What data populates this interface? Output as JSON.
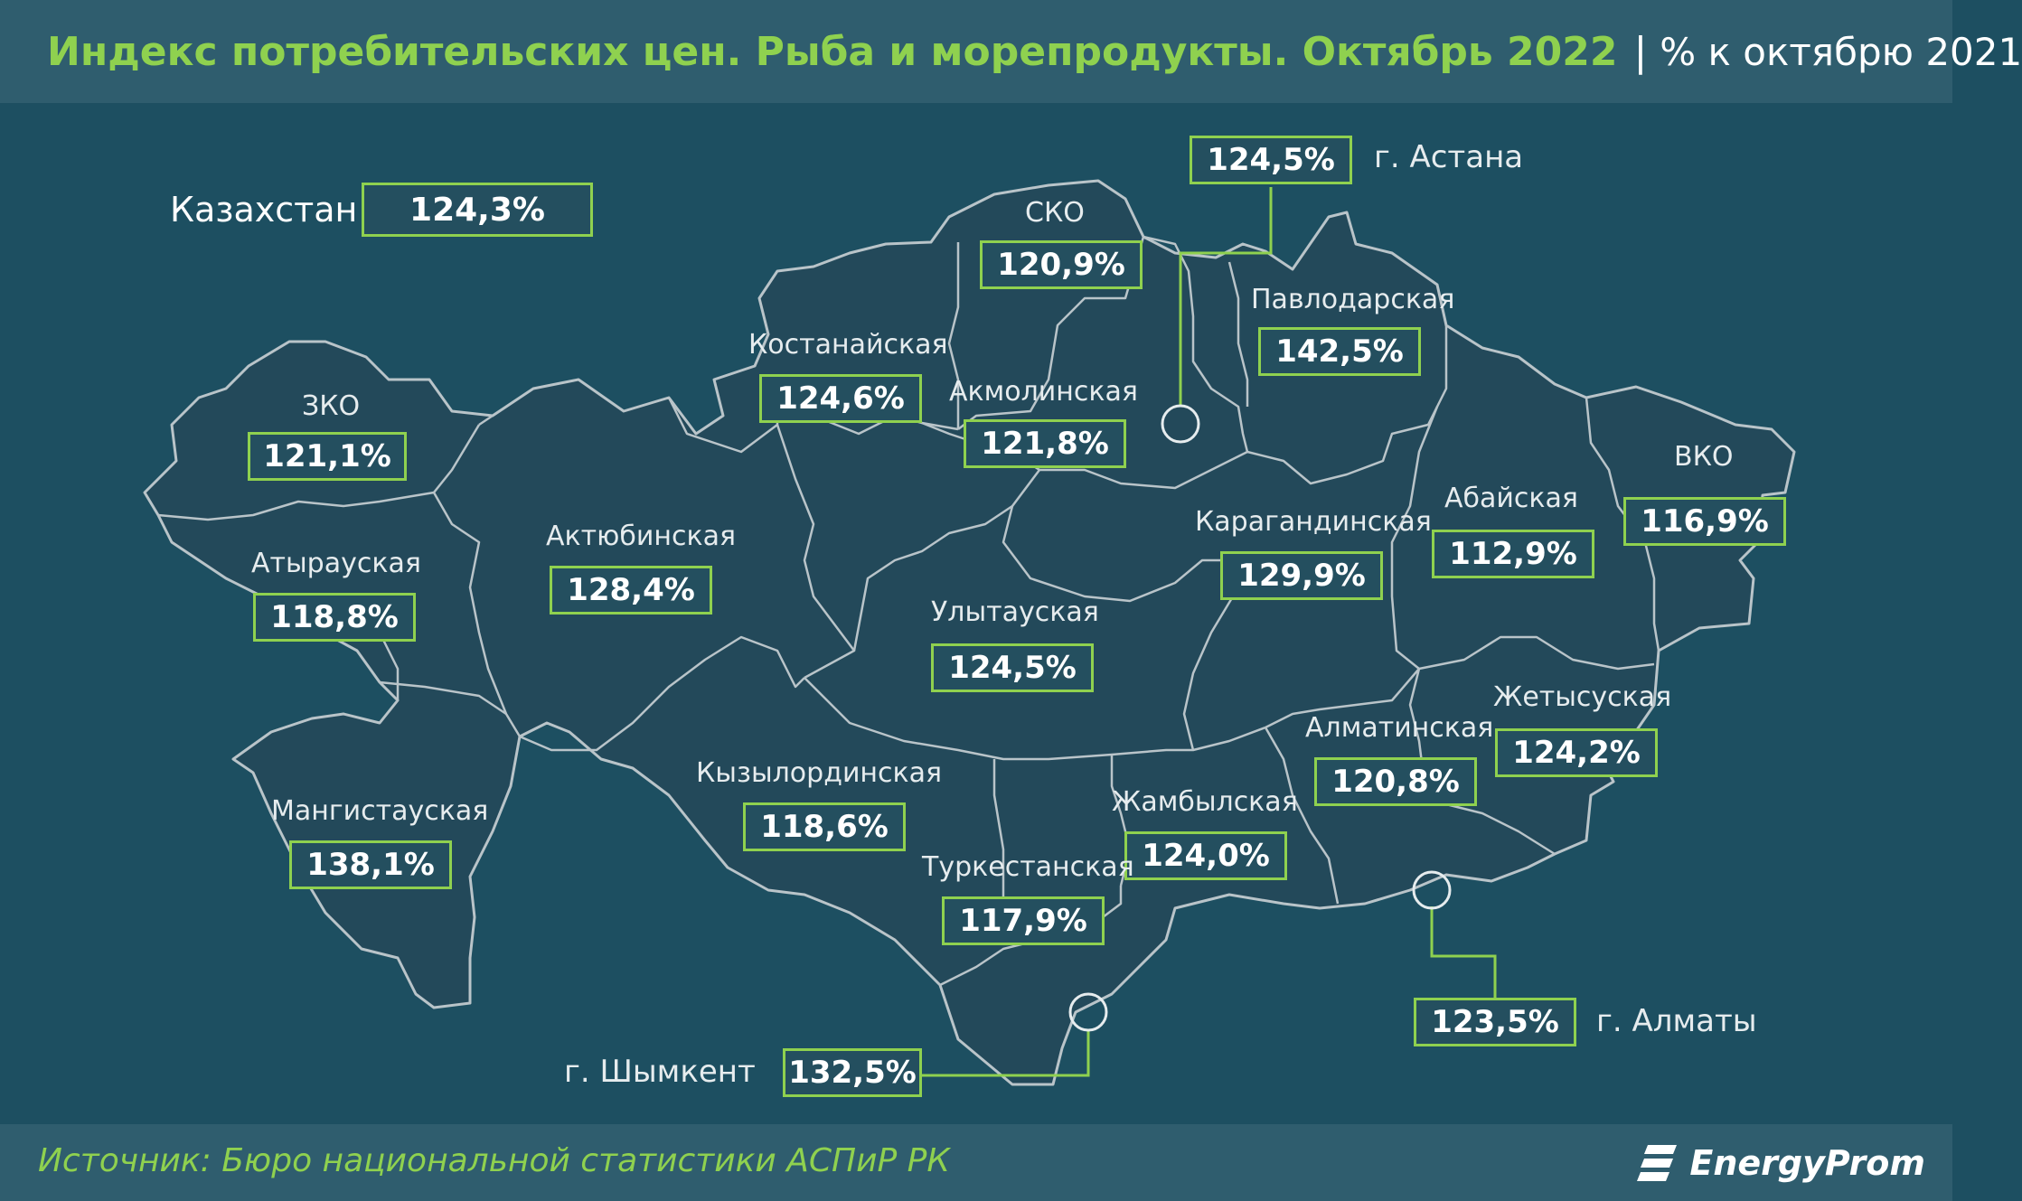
{
  "header": {
    "title": "Индекс потребительских цен. Рыба и морепродукты. Октябрь 2022",
    "separator": "|",
    "subtitle": "% к октябрю 2021"
  },
  "kazakhstan": {
    "label": "Казахстан",
    "value": "124,3%"
  },
  "regions": [
    {
      "id": "zko",
      "label": "ЗКО",
      "value": "121,1%"
    },
    {
      "id": "atyrau",
      "label": "Атырауская",
      "value": "118,8%"
    },
    {
      "id": "mangystau",
      "label": "Мангистауская",
      "value": "138,1%"
    },
    {
      "id": "aktobe",
      "label": "Актюбинская",
      "value": "128,4%"
    },
    {
      "id": "kostanay",
      "label": "Костанайская",
      "value": "124,6%"
    },
    {
      "id": "sko",
      "label": "СКО",
      "value": "120,9%"
    },
    {
      "id": "akmola",
      "label": "Акмолинская",
      "value": "121,8%"
    },
    {
      "id": "pavlodar",
      "label": "Павлодарская",
      "value": "142,5%"
    },
    {
      "id": "karaganda",
      "label": "Карагандинская",
      "value": "129,9%"
    },
    {
      "id": "abai",
      "label": "Абайская",
      "value": "112,9%"
    },
    {
      "id": "vko",
      "label": "ВКО",
      "value": "116,9%"
    },
    {
      "id": "ulytau",
      "label": "Улытауская",
      "value": "124,5%"
    },
    {
      "id": "kyzylorda",
      "label": "Кызылординская",
      "value": "118,6%"
    },
    {
      "id": "zhambyl",
      "label": "Жамбылская",
      "value": "124,0%"
    },
    {
      "id": "turkestan",
      "label": "Туркестанская",
      "value": "117,9%"
    },
    {
      "id": "almaty_reg",
      "label": "Алматинская",
      "value": "120,8%"
    },
    {
      "id": "zhetysu",
      "label": "Жетысуская",
      "value": "124,2%"
    }
  ],
  "cities": [
    {
      "id": "astana",
      "label": "г. Астана",
      "value": "124,5%"
    },
    {
      "id": "almaty",
      "label": "г. Алматы",
      "value": "123,5%"
    },
    {
      "id": "shymkent",
      "label": "г. Шымкент",
      "value": "132,5%"
    }
  ],
  "footer": {
    "source": "Источник: Бюро национальной статистики АСПиР РК",
    "brand": "EnergyProm"
  },
  "colors": {
    "background": "#1d4f61",
    "band": "#2f5d6e",
    "land": "#23495a",
    "border": "#b9c4c9",
    "accent": "#8fd14f"
  }
}
